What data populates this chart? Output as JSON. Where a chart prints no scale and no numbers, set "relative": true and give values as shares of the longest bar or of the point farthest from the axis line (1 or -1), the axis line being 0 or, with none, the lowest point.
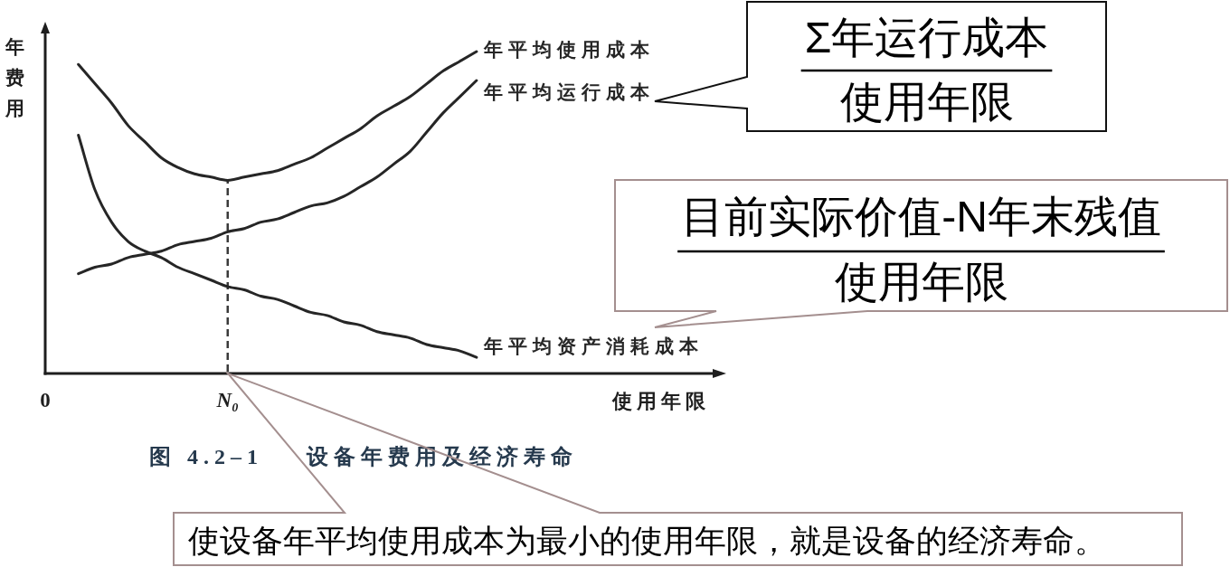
{
  "chart_data": {
    "type": "line",
    "relative": true,
    "xlabel": "使用年限",
    "ylabel": "年费用",
    "categories": [
      "0",
      null,
      null,
      null,
      null,
      null,
      null,
      null,
      null,
      null,
      null,
      "N₀",
      null,
      null,
      null,
      null,
      null,
      null,
      null,
      null,
      null,
      null,
      null,
      null,
      null,
      null,
      null,
      null,
      null,
      null,
      null,
      null,
      null,
      null,
      null,
      null,
      null,
      null,
      null,
      null,
      null,
      null
    ],
    "series": [
      {
        "name": "年平均使用成本",
        "color": "#262626",
        "values": [
          null,
          null,
          0.96,
          0.9,
          0.84,
          0.77,
          0.72,
          0.67,
          0.64,
          0.62,
          0.61,
          0.6,
          0.61,
          0.62,
          0.63,
          0.65,
          0.67,
          0.7,
          0.73,
          0.76,
          0.8,
          0.83,
          0.86,
          0.9,
          0.94,
          0.97,
          1,
          null,
          null,
          null,
          null,
          null,
          null,
          null,
          null,
          null,
          null,
          null,
          null,
          null,
          null,
          null
        ]
      },
      {
        "name": "年平均运行成本",
        "color": "#262626",
        "values": [
          null,
          null,
          0.31,
          0.33,
          0.34,
          0.36,
          0.37,
          0.38,
          0.4,
          0.41,
          0.42,
          0.44,
          0.45,
          0.47,
          0.48,
          0.5,
          0.52,
          0.53,
          0.55,
          0.58,
          0.61,
          0.65,
          0.69,
          0.75,
          0.81,
          0.86,
          0.91,
          null,
          null,
          null,
          null,
          null,
          null,
          null,
          null,
          null,
          null,
          null,
          null,
          null,
          null,
          null
        ]
      },
      {
        "name": "年平均资产消耗成本",
        "color": "#262626",
        "values": [
          null,
          null,
          0.74,
          0.57,
          0.47,
          0.41,
          0.38,
          0.36,
          0.33,
          0.31,
          0.29,
          0.27,
          0.26,
          0.24,
          0.23,
          0.21,
          0.19,
          0.18,
          0.16,
          0.15,
          0.13,
          0.12,
          0.11,
          0.09,
          0.08,
          0.07,
          0.05,
          null,
          null,
          null,
          null,
          null,
          null,
          null,
          null,
          null,
          null,
          null,
          null,
          null,
          null,
          null
        ]
      }
    ],
    "ref_lines": [
      {
        "axis": "x",
        "value": "N₀",
        "line_style": "dashed",
        "color": "#3a3a3a"
      }
    ],
    "annotations": [
      "Σ年运行成本",
      "使用年限",
      "目前实际价值-N年末残值",
      "使用年限",
      "图 4.2–1    设备年费用及经济寿命",
      "使设备年平均使用成本为最小的使用年限，就是设备的经济寿命。"
    ]
  }
}
